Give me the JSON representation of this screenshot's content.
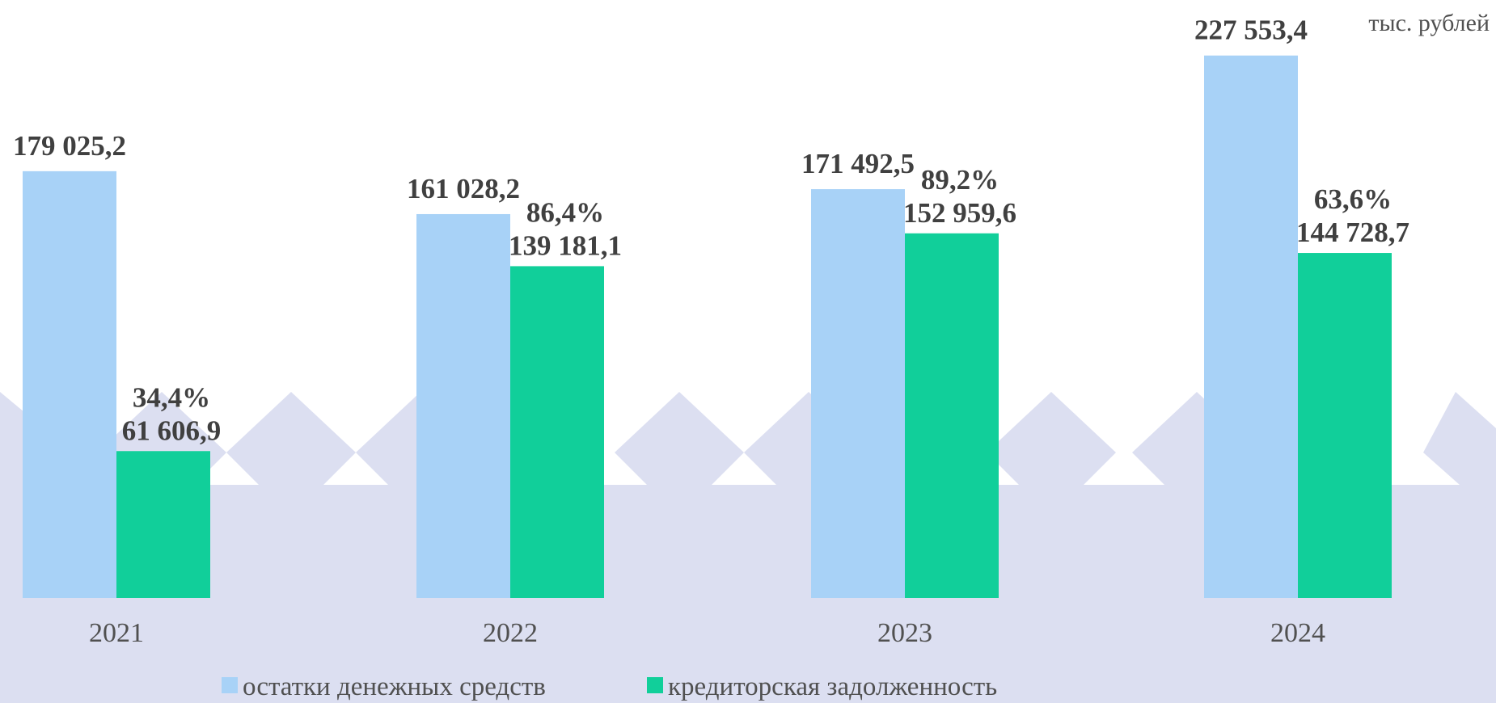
{
  "chart_data": {
    "type": "bar",
    "unit": "тыс. рублей",
    "categories": [
      "2021",
      "2022",
      "2023",
      "2024"
    ],
    "series": [
      {
        "name": "остатки денежных средств",
        "color": "#a8d2f7",
        "values": [
          179025.2,
          161028.2,
          171492.5,
          227553.4
        ],
        "value_labels": [
          "179 025,2",
          "161 028,2",
          "171 492,5",
          "227 553,4"
        ]
      },
      {
        "name": "кредиторская задолженность",
        "color": "#11cf9a",
        "values": [
          61606.9,
          139181.1,
          152959.6,
          144728.7
        ],
        "value_labels": [
          "61 606,9",
          "139 181,1",
          "152 959,6",
          "144 728,7"
        ],
        "shares": [
          34.4,
          86.4,
          89.2,
          63.6
        ],
        "share_labels": [
          "34,4%",
          "86,4%",
          "89,2%",
          "63,6%"
        ]
      }
    ],
    "ylim": [
      0,
      240000
    ],
    "legend": "bottom"
  }
}
